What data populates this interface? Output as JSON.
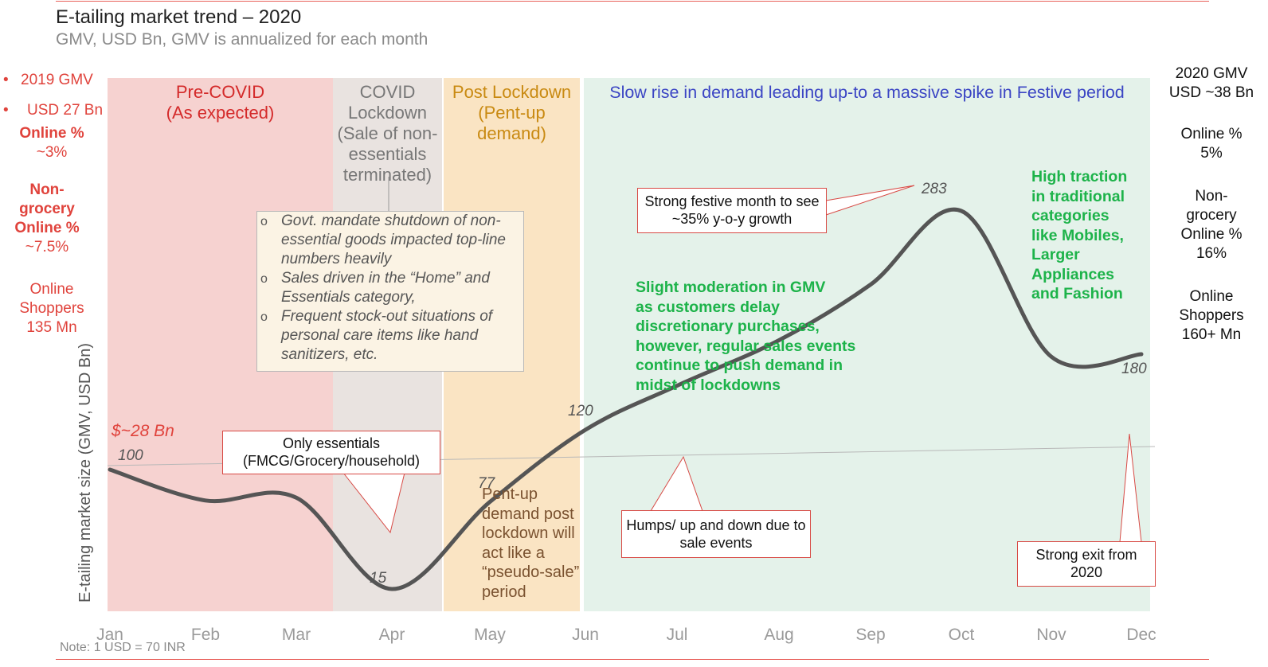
{
  "header": {
    "title": "E-tailing market trend – 2020",
    "subtitle": "GMV, USD Bn, GMV is annualized for each month"
  },
  "left_stats": {
    "bullet1": "2019 GMV",
    "bullet2": "USD 27 Bn",
    "online_pct_label": "Online %",
    "online_pct_value": "~3%",
    "nongrocery_label_1": "Non-",
    "nongrocery_label_2": "grocery",
    "nongrocery_label_3": "Online %",
    "nongrocery_value": "~7.5%",
    "shoppers_label_1": "Online",
    "shoppers_label_2": "Shoppers",
    "shoppers_value": "135 Mn"
  },
  "right_stats": {
    "gmv_label": "2020 GMV",
    "gmv_value": "USD ~38 Bn",
    "online_pct_label": "Online %",
    "online_pct_value": "5%",
    "nongrocery_label_1": "Non-",
    "nongrocery_label_2": "grocery",
    "nongrocery_label_3": "Online %",
    "nongrocery_value": "16%",
    "shoppers_label_1": "Online",
    "shoppers_label_2": "Shoppers",
    "shoppers_value": "160+ Mn"
  },
  "phases": [
    {
      "line1": "Pre-COVID",
      "line2": "(As expected)",
      "color": "#d42a2a",
      "bg": "#f6d2d0"
    },
    {
      "line1": "COVID",
      "line2": "Lockdown",
      "line3": "(Sale of non-",
      "line4": "essentials",
      "line5": "terminated)",
      "color": "#777777",
      "bg": "#e9e3e0"
    },
    {
      "line1": "Post Lockdown",
      "line2": "(Pent-up",
      "line3": "demand)",
      "color": "#c98a12",
      "bg": "#fae4c3"
    },
    {
      "line1": "Slow rise in demand leading up-to a massive spike in Festive period",
      "color": "#3b45c4",
      "bg": "#e4f2ea"
    }
  ],
  "covid_notes": [
    "Govt. mandate shutdown of non-essential goods impacted top-line numbers heavily",
    "Sales driven in the “Home” and Essentials category,",
    "Frequent stock-out situations of personal care items like hand sanitizers, etc."
  ],
  "callouts": {
    "essentials_1": "Only essentials",
    "essentials_2": "(FMCG/Grocery/household)",
    "festive_1": "Strong festive month to see",
    "festive_2": "~35% y-o-y growth",
    "humps_1": "Humps/ up and down due to",
    "humps_2": "sale events",
    "exit_1": "Strong exit from",
    "exit_2": "2020"
  },
  "pentup_text": [
    "Pent-up",
    "demand post",
    "lockdown will",
    "act like a",
    "“pseudo-sale”",
    "period"
  ],
  "green_notes": {
    "moderation": [
      "Slight  moderation  in GMV",
      "as customers delay",
      "discretionary purchases,",
      "however, regular sales events",
      "continue to push demand in",
      "midst of lockdowns"
    ],
    "traction": [
      "High traction",
      "in traditional",
      "categories",
      "like Mobiles,",
      "Larger",
      "Appliances",
      "and Fashion"
    ]
  },
  "baseline_label": "$~28 Bn",
  "note": "Note: 1 USD = 70 INR",
  "chart_data": {
    "type": "line",
    "ylabel": "E-tailing market size (GMV, USD Bn)",
    "categories": [
      "Jan",
      "Feb",
      "Mar",
      "Apr",
      "May",
      "Jun",
      "Jul",
      "Aug",
      "Sep",
      "Oct",
      "Nov",
      "Dec"
    ],
    "series": [
      {
        "values": [
          100,
          78,
          80,
          15,
          77,
          120,
          155,
          190,
          230,
          283,
          178,
          180
        ]
      }
    ],
    "data_labels": [
      {
        "month": "Jan",
        "value": 100,
        "text": "100"
      },
      {
        "month": "Apr",
        "value": 15,
        "text": "15"
      },
      {
        "month": "May",
        "value": 77,
        "text": "77"
      },
      {
        "month": "Jun",
        "value": 120,
        "text": "120"
      },
      {
        "month": "Oct",
        "value": 283,
        "text": "283"
      },
      {
        "month": "Dec",
        "value": 180,
        "text": "180"
      }
    ],
    "line_color": "#555555",
    "grid": false
  }
}
